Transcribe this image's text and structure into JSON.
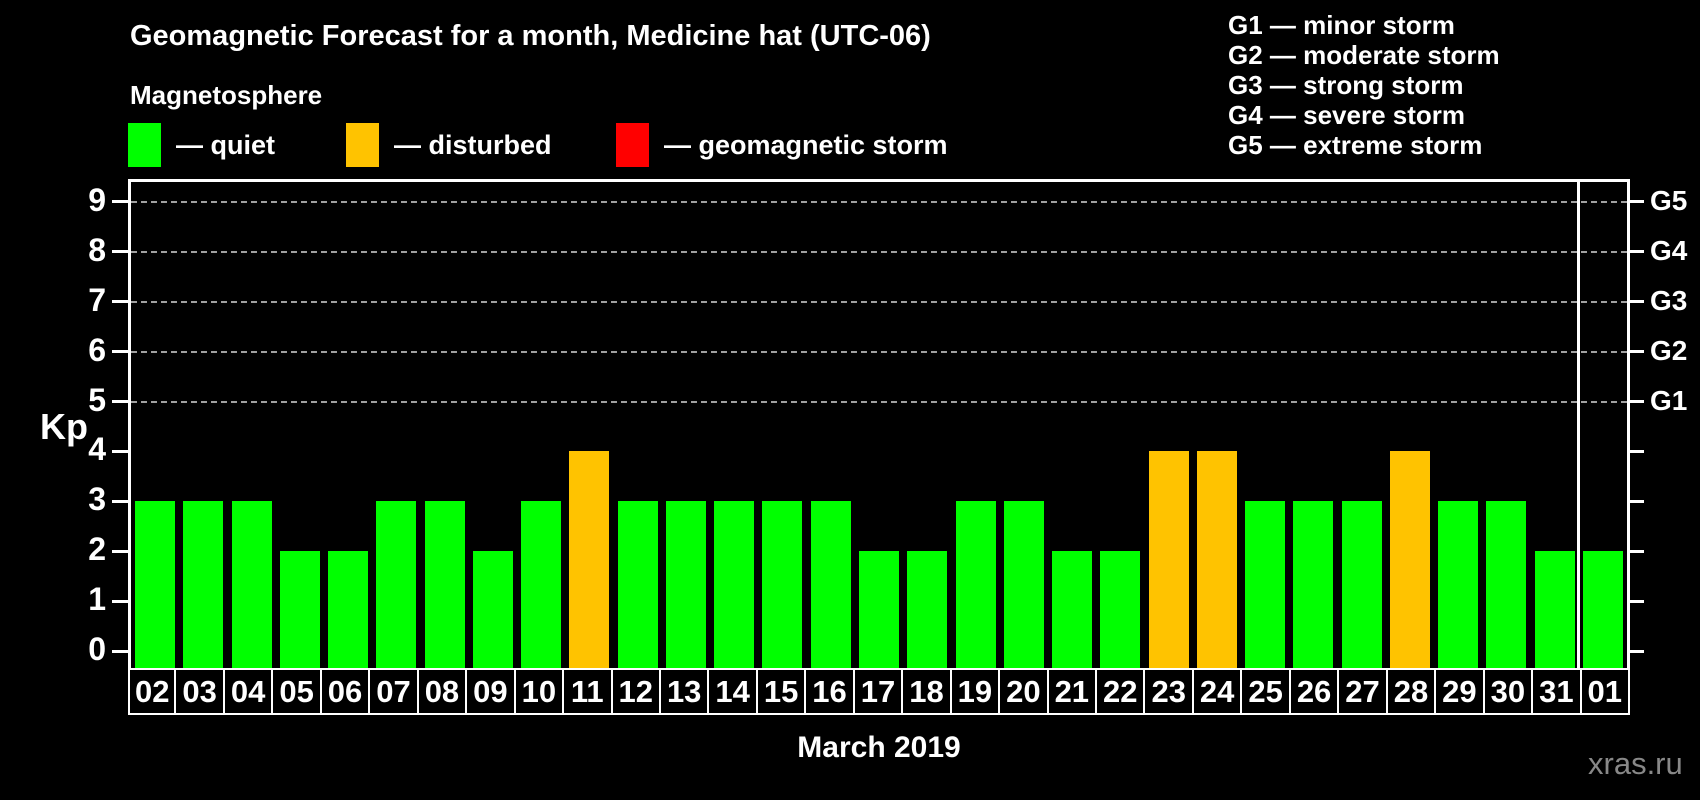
{
  "title": "Geomagnetic Forecast for a month, Medicine hat (UTC-06)",
  "subtitle": "Magnetosphere",
  "legend": {
    "items": [
      {
        "key": "quiet",
        "label": "— quiet",
        "color": "#00ff00"
      },
      {
        "key": "disturbed",
        "label": "— disturbed",
        "color": "#ffc300"
      },
      {
        "key": "storm",
        "label": "— geomagnetic storm",
        "color": "#ff0000"
      }
    ]
  },
  "g_scale_legend": [
    "G1 — minor storm",
    "G2 — moderate storm",
    "G3 — strong storm",
    "G4 — severe storm",
    "G5 — extreme storm"
  ],
  "watermark": "xras.ru",
  "chart_data": {
    "type": "bar",
    "title": "Geomagnetic Forecast for a month, Medicine hat (UTC-06)",
    "xlabel": "March 2019",
    "ylabel": "Kp",
    "ylim": [
      0,
      9.4
    ],
    "yticks": [
      0,
      1,
      2,
      3,
      4,
      5,
      6,
      7,
      8,
      9
    ],
    "gridlines_at_kp": [
      5,
      6,
      7,
      8,
      9
    ],
    "grid": true,
    "right_axis_labels": [
      {
        "kp": 5,
        "label": "G1"
      },
      {
        "kp": 6,
        "label": "G2"
      },
      {
        "kp": 7,
        "label": "G3"
      },
      {
        "kp": 8,
        "label": "G4"
      },
      {
        "kp": 9,
        "label": "G5"
      }
    ],
    "categories": [
      "02",
      "03",
      "04",
      "05",
      "06",
      "07",
      "08",
      "09",
      "10",
      "11",
      "12",
      "13",
      "14",
      "15",
      "16",
      "17",
      "18",
      "19",
      "20",
      "21",
      "22",
      "23",
      "24",
      "25",
      "26",
      "27",
      "28",
      "29",
      "30",
      "31",
      "01"
    ],
    "values": [
      3,
      3,
      3,
      2,
      2,
      3,
      3,
      2,
      3,
      4,
      3,
      3,
      3,
      3,
      3,
      2,
      2,
      3,
      3,
      2,
      2,
      4,
      4,
      3,
      3,
      3,
      4,
      3,
      3,
      2,
      2
    ],
    "statuses": [
      "quiet",
      "quiet",
      "quiet",
      "quiet",
      "quiet",
      "quiet",
      "quiet",
      "quiet",
      "quiet",
      "disturbed",
      "quiet",
      "quiet",
      "quiet",
      "quiet",
      "quiet",
      "quiet",
      "quiet",
      "quiet",
      "quiet",
      "quiet",
      "quiet",
      "disturbed",
      "disturbed",
      "quiet",
      "quiet",
      "quiet",
      "disturbed",
      "quiet",
      "quiet",
      "quiet",
      "quiet"
    ],
    "status_colors": {
      "quiet": "#00ff00",
      "disturbed": "#ffc300",
      "storm": "#ff0000"
    },
    "month_separator_before_category": "01",
    "legend_position": "top-left"
  }
}
